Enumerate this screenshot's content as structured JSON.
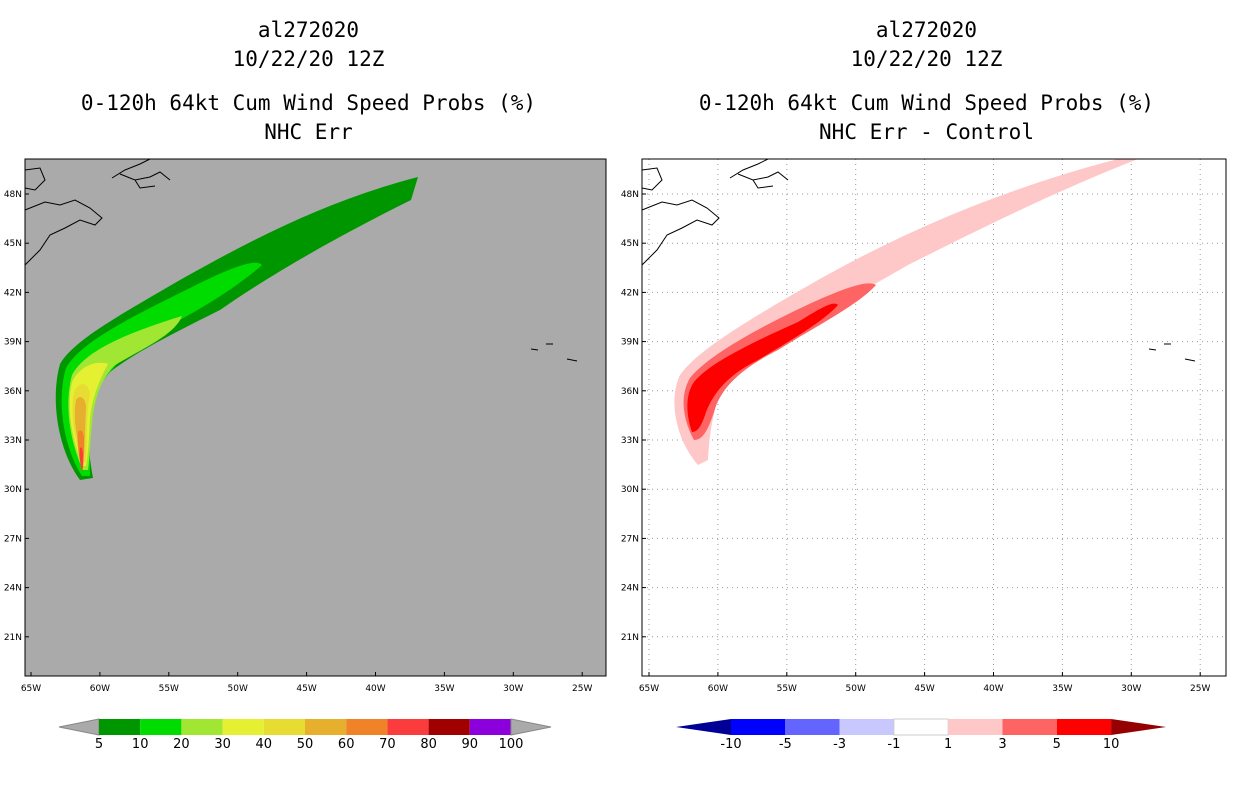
{
  "panels": [
    {
      "storm": "al272020",
      "date": "10/22/20 12Z",
      "title": "0-120h 64kt Cum Wind Speed Probs (%)",
      "subtitle": "NHC Err",
      "background": "#aaaaaa",
      "grid": false
    },
    {
      "storm": "al272020",
      "date": "10/22/20 12Z",
      "title": "0-120h 64kt Cum Wind Speed Probs (%)",
      "subtitle": "NHC Err - Control",
      "background": "#ffffff",
      "grid": true
    }
  ],
  "axes": {
    "lat_labels": [
      "48N",
      "45N",
      "42N",
      "39N",
      "36N",
      "33N",
      "30N",
      "27N",
      "24N",
      "21N"
    ],
    "lon_labels": [
      "65W",
      "60W",
      "55W",
      "50W",
      "45W",
      "40W",
      "35W",
      "30W",
      "25W"
    ]
  },
  "colorbars": [
    {
      "labels": [
        "5",
        "10",
        "20",
        "30",
        "40",
        "50",
        "60",
        "70",
        "80",
        "90",
        "100"
      ],
      "colors": [
        "#009600",
        "#00dc00",
        "#a0e632",
        "#e6f032",
        "#e6dc32",
        "#e6af2d",
        "#f08228",
        "#fa3c3c",
        "#a00000",
        "#8c00dc"
      ],
      "end_color": "#aaaaaa"
    },
    {
      "labels": [
        "-10",
        "-5",
        "-3",
        "-1",
        "1",
        "3",
        "5",
        "10"
      ],
      "colors": [
        "#0000ff",
        "#6464ff",
        "#c8c8ff",
        "#ffffff",
        "#ffc8c8",
        "#ff6464",
        "#ff0000"
      ],
      "low_end_color": "#000096",
      "high_end_color": "#960000"
    }
  ]
}
